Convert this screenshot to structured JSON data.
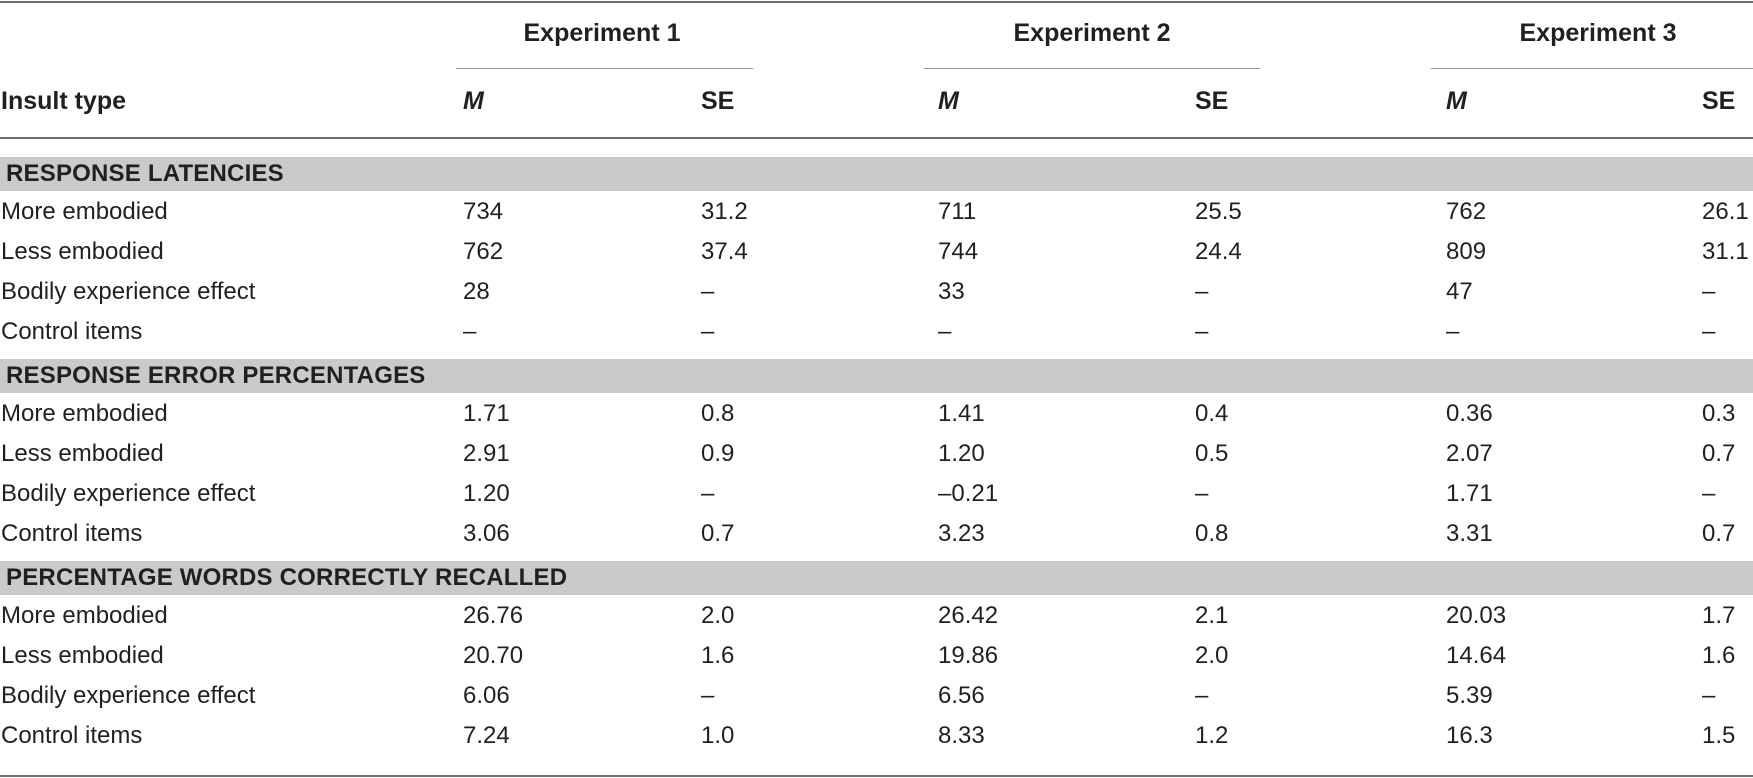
{
  "table": {
    "group_headers": [
      "Experiment 1",
      "Experiment 2",
      "Experiment 3"
    ],
    "row_header": "Insult type",
    "col_m": "M",
    "col_se": "SE",
    "sections": [
      {
        "title": "RESPONSE LATENCIES",
        "rows": [
          {
            "label": "More embodied",
            "values": [
              "734",
              "31.2",
              "711",
              "25.5",
              "762",
              "26.1"
            ]
          },
          {
            "label": "Less embodied",
            "values": [
              "762",
              "37.4",
              "744",
              "24.4",
              "809",
              "31.1"
            ]
          },
          {
            "label": "Bodily experience effect",
            "values": [
              "28",
              "–",
              "33",
              "–",
              "47",
              "–"
            ]
          },
          {
            "label": "Control items",
            "values": [
              "–",
              "–",
              "–",
              "–",
              "–",
              "–"
            ]
          }
        ]
      },
      {
        "title": "RESPONSE ERROR PERCENTAGES",
        "rows": [
          {
            "label": "More embodied",
            "values": [
              "1.71",
              "0.8",
              "1.41",
              "0.4",
              "0.36",
              "0.3"
            ]
          },
          {
            "label": "Less embodied",
            "values": [
              "2.91",
              "0.9",
              "1.20",
              "0.5",
              "2.07",
              "0.7"
            ]
          },
          {
            "label": "Bodily experience effect",
            "values": [
              "1.20",
              "–",
              "–0.21",
              "–",
              "1.71",
              "–"
            ]
          },
          {
            "label": "Control items",
            "values": [
              "3.06",
              "0.7",
              "3.23",
              "0.8",
              "3.31",
              "0.7"
            ]
          }
        ]
      },
      {
        "title": "PERCENTAGE WORDS CORRECTLY RECALLED",
        "rows": [
          {
            "label": "More embodied",
            "values": [
              "26.76",
              "2.0",
              "26.42",
              "2.1",
              "20.03",
              "1.7"
            ]
          },
          {
            "label": "Less embodied",
            "values": [
              "20.70",
              "1.6",
              "19.86",
              "2.0",
              "14.64",
              "1.6"
            ]
          },
          {
            "label": "Bodily experience effect",
            "values": [
              "6.06",
              "–",
              "6.56",
              "–",
              "5.39",
              "–"
            ]
          },
          {
            "label": "Control items",
            "values": [
              "7.24",
              "1.0",
              "8.33",
              "1.2",
              "16.3",
              "1.5"
            ]
          }
        ]
      }
    ]
  }
}
